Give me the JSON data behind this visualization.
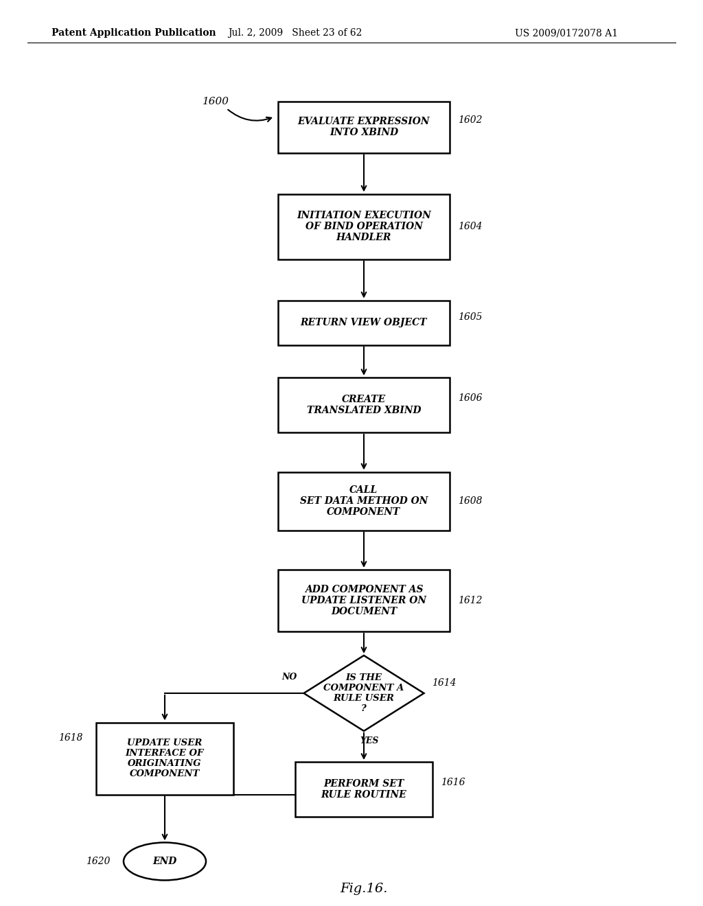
{
  "title_left": "Patent Application Publication",
  "title_center": "Jul. 2, 2009   Sheet 23 of 62",
  "title_right": "US 2009/0172078 A1",
  "fig_label": "Fig.16.",
  "background_color": "#ffffff"
}
